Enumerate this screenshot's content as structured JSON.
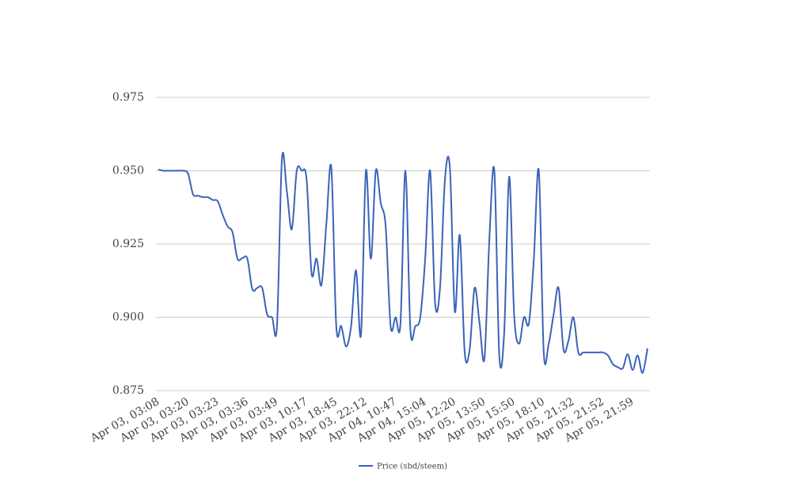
{
  "chart_data": {
    "type": "line",
    "categories": [
      "Apr 03, 03:08",
      null,
      null,
      null,
      null,
      null,
      "Apr 03, 03:20",
      null,
      null,
      null,
      null,
      null,
      "Apr 03, 03:23",
      null,
      null,
      null,
      null,
      null,
      "Apr 03, 03:36",
      null,
      null,
      null,
      null,
      null,
      "Apr 03, 03:49",
      null,
      null,
      null,
      null,
      null,
      "Apr 03, 10:17",
      null,
      null,
      null,
      null,
      null,
      "Apr 03, 18:45",
      null,
      null,
      null,
      null,
      null,
      "Apr 03, 22:12",
      null,
      null,
      null,
      null,
      null,
      "Apr 04, 10:47",
      null,
      null,
      null,
      null,
      null,
      "Apr 04, 15:04",
      null,
      null,
      null,
      null,
      null,
      "Apr 05, 12:20",
      null,
      null,
      null,
      null,
      null,
      "Apr 05, 13:50",
      null,
      null,
      null,
      null,
      null,
      "Apr 05, 15:50",
      null,
      null,
      null,
      null,
      null,
      "Apr 05, 18:10",
      null,
      null,
      null,
      null,
      null,
      "Apr 05, 21:32",
      null,
      null,
      null,
      null,
      null,
      "Apr 05, 21:52",
      null,
      null,
      null,
      null,
      null,
      "Apr 05, 21:59",
      null,
      null,
      null
    ],
    "series": [
      {
        "name": "Price (sbd/steem)",
        "color": "#3a63b8",
        "values": [
          0.9504,
          0.95,
          0.95,
          0.95,
          0.95,
          0.95,
          0.949,
          0.942,
          0.9415,
          0.941,
          0.941,
          0.94,
          0.9396,
          0.935,
          0.931,
          0.929,
          0.92,
          0.9202,
          0.92,
          0.9096,
          0.91,
          0.91,
          0.901,
          0.9,
          0.897,
          0.954,
          0.943,
          0.93,
          0.95,
          0.95,
          0.947,
          0.915,
          0.92,
          0.911,
          0.932,
          0.951,
          0.897,
          0.897,
          0.89,
          0.897,
          0.916,
          0.894,
          0.95,
          0.92,
          0.95,
          0.939,
          0.931,
          0.897,
          0.9,
          0.898,
          0.95,
          0.896,
          0.897,
          0.9,
          0.92,
          0.95,
          0.905,
          0.91,
          0.947,
          0.951,
          0.902,
          0.928,
          0.888,
          0.889,
          0.91,
          0.898,
          0.886,
          0.927,
          0.95,
          0.887,
          0.895,
          0.948,
          0.901,
          0.891,
          0.9,
          0.898,
          0.92,
          0.95,
          0.888,
          0.891,
          0.901,
          0.91,
          0.889,
          0.892,
          0.9,
          0.888,
          0.888,
          0.888,
          0.888,
          0.888,
          0.888,
          0.887,
          0.884,
          0.883,
          0.8826,
          0.8874,
          0.882,
          0.887,
          0.881,
          0.8894
        ]
      }
    ],
    "ylim": [
      0.875,
      0.975
    ],
    "yticks": [
      {
        "value": 0.875,
        "label": "0.875"
      },
      {
        "value": 0.9,
        "label": "0.900"
      },
      {
        "value": 0.925,
        "label": "0.925"
      },
      {
        "value": 0.95,
        "label": "0.950"
      },
      {
        "value": 0.975,
        "label": "0.975"
      }
    ],
    "grid": true,
    "legend": "bottom"
  }
}
